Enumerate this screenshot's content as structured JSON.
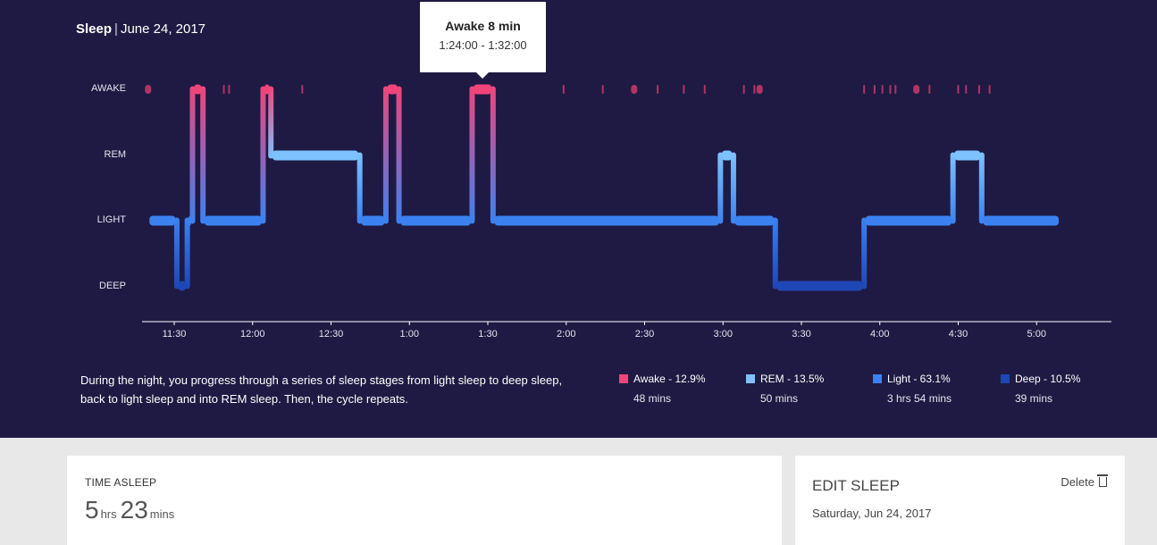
{
  "header": {
    "title": "Sleep",
    "separator": "|",
    "date": "June 24, 2017"
  },
  "tooltip": {
    "title": "Awake 8 min",
    "range": "1:24:00 - 1:32:00"
  },
  "colors": {
    "awake": "#f0457a",
    "rem": "#7dc2ff",
    "light": "#3b82f0",
    "deep": "#1e46b4",
    "panel": "#1f1a43"
  },
  "chart_data": {
    "type": "timeline",
    "stages": [
      "AWAKE",
      "REM",
      "LIGHT",
      "DEEP"
    ],
    "x_tick_labels": [
      "11:30",
      "12:00",
      "12:30",
      "1:00",
      "1:30",
      "2:00",
      "2:30",
      "3:00",
      "3:30",
      "4:00",
      "4:30",
      "5:00"
    ],
    "segments": [
      {
        "stage": "LIGHT",
        "start": "11:20",
        "end": "11:31"
      },
      {
        "stage": "DEEP",
        "start": "11:31",
        "end": "11:35"
      },
      {
        "stage": "LIGHT",
        "start": "11:35",
        "end": "11:37"
      },
      {
        "stage": "AWAKE",
        "start": "11:37",
        "end": "11:41"
      },
      {
        "stage": "LIGHT",
        "start": "11:41",
        "end": "12:04"
      },
      {
        "stage": "AWAKE",
        "start": "12:04",
        "end": "12:07"
      },
      {
        "stage": "REM",
        "start": "12:07",
        "end": "12:41"
      },
      {
        "stage": "LIGHT",
        "start": "12:41",
        "end": "12:51"
      },
      {
        "stage": "AWAKE",
        "start": "12:51",
        "end": "12:56"
      },
      {
        "stage": "LIGHT",
        "start": "12:56",
        "end": "1:24"
      },
      {
        "stage": "AWAKE",
        "start": "1:24",
        "end": "1:32"
      },
      {
        "stage": "LIGHT",
        "start": "1:32",
        "end": "2:59"
      },
      {
        "stage": "REM",
        "start": "2:59",
        "end": "3:04"
      },
      {
        "stage": "LIGHT",
        "start": "3:04",
        "end": "3:20"
      },
      {
        "stage": "DEEP",
        "start": "3:20",
        "end": "3:54"
      },
      {
        "stage": "LIGHT",
        "start": "3:54",
        "end": "4:28"
      },
      {
        "stage": "REM",
        "start": "4:28",
        "end": "4:39"
      },
      {
        "stage": "LIGHT",
        "start": "4:39",
        "end": "5:09"
      }
    ],
    "brief_awakenings": [
      "11:20",
      "11:49",
      "11:51",
      "12:19",
      "1:59",
      "2:14",
      "2:26",
      "2:35",
      "2:45",
      "2:53",
      "3:08",
      "3:12",
      "3:14",
      "3:54",
      "3:58",
      "4:01",
      "4:04",
      "4:06",
      "4:14",
      "4:19",
      "4:30",
      "4:33",
      "4:38",
      "4:42"
    ]
  },
  "description": "During the night, you progress through a series of sleep stages from light sleep to deep sleep, back to light sleep and into REM sleep. Then, the cycle repeats.",
  "legend": [
    {
      "label": "Awake - 12.9%",
      "duration": "48 mins",
      "color": "#f0457a"
    },
    {
      "label": "REM - 13.5%",
      "duration": "50 mins",
      "color": "#7dc2ff"
    },
    {
      "label": "Light - 63.1%",
      "duration": "3 hrs 54 mins",
      "color": "#3b82f0"
    },
    {
      "label": "Deep - 10.5%",
      "duration": "39 mins",
      "color": "#1e46b4"
    }
  ],
  "time_asleep": {
    "label": "TIME ASLEEP",
    "hours": "5",
    "hours_unit": "hrs",
    "minutes": "23",
    "minutes_unit": "mins"
  },
  "edit_sleep": {
    "title": "EDIT SLEEP",
    "delete_label": "Delete",
    "date": "Saturday, Jun 24, 2017"
  }
}
